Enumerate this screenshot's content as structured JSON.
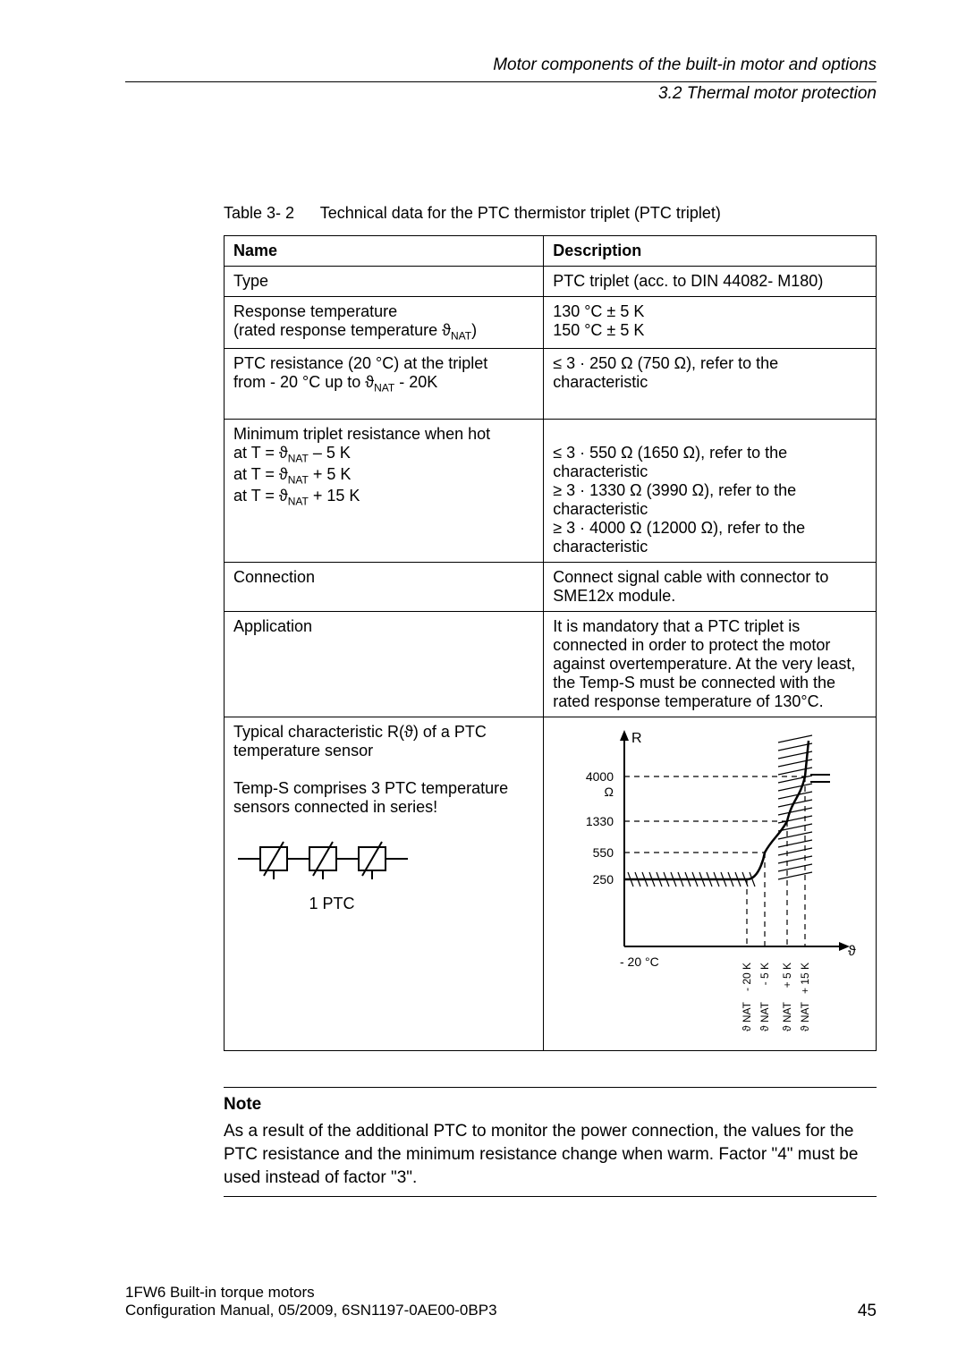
{
  "header": {
    "line1": "Motor components of the built-in motor and options",
    "line2": "3.2 Thermal motor protection"
  },
  "caption": {
    "label": "Table 3- 2",
    "text": "Technical data for the PTC thermistor triplet (PTC triplet)"
  },
  "table": {
    "head_name": "Name",
    "head_desc": "Description",
    "rows": {
      "type_name": "Type",
      "type_desc": "PTC triplet (acc. to DIN 44082- M180)",
      "resp_name_l1": "Response temperature",
      "resp_name_l2_pre": "(rated response temperature ϑ",
      "resp_name_l2_sub": "NAT",
      "resp_name_l2_post": ")",
      "resp_desc_l1": "130 °C ± 5 K",
      "resp_desc_l2": "150 °C ± 5 K",
      "ptc_res_name_l1": "PTC resistance (20 °C) at the triplet",
      "ptc_res_name_l2_pre": "from - 20 °C up to ϑ",
      "ptc_res_name_l2_sub": "NAT",
      "ptc_res_name_l2_post": " - 20K",
      "ptc_res_desc": "≤ 3 · 250 Ω (750 Ω), refer to the characteristic",
      "min_hot": "Minimum triplet resistance when hot",
      "at1_pre": " at T = ϑ",
      "at1_sub": "NAT",
      "at1_post": " – 5 K",
      "at1_desc": "≤ 3 · 550 Ω (1650 Ω), refer to the characteristic",
      "at2_pre": " at T = ϑ",
      "at2_sub": "NAT",
      "at2_post": " + 5 K",
      "at2_desc": "≥ 3 · 1330 Ω (3990 Ω), refer to the characteristic",
      "at3_pre": " at T = ϑ",
      "at3_sub": "NAT",
      "at3_post": " + 15 K",
      "at3_desc": "≥ 3 · 4000 Ω (12000 Ω), refer to the characteristic",
      "conn_name": "Connection",
      "conn_desc": "Connect signal cable with connector to SME12x module.",
      "app_name": "Application",
      "app_desc": "It is mandatory that a PTC triplet is connected in order to protect the motor against overtemperature. At the very least, the Temp-S must be connected with the rated response temperature of 130°C.",
      "char_l1": "Typical characteristic R(ϑ) of a PTC temperature sensor",
      "char_l2": "Temp-S comprises 3 PTC temperature sensors connected in series!",
      "char_l3": "1 PTC"
    }
  },
  "chart": {
    "type": "line",
    "y_label": "R",
    "y_unit": "Ω",
    "y_ticks": [
      250,
      550,
      1330,
      4000
    ],
    "x_left_label": "- 20 °C",
    "x_right_label": "ϑ",
    "x_tick_groups": [
      {
        "top": "- 20 K",
        "bottom": "ϑ NAT"
      },
      {
        "top": "- 5 K",
        "bottom": "ϑ NAT"
      },
      {
        "top": "+ 5 K",
        "bottom": "ϑ NAT"
      },
      {
        "top": "+ 15 K",
        "bottom": "ϑ NAT"
      }
    ],
    "colors": {
      "axis": "#000000",
      "solid_curve": "#000000",
      "tolerance_hatch": "#000000",
      "dashed": "#000000",
      "background": "#ffffff"
    },
    "line_width_axis": 2,
    "line_width_curve": 2.5,
    "dash_pattern": "6,5",
    "font_size_ticks": 14,
    "font_size_axis": 16
  },
  "note": {
    "title": "Note",
    "body": "As a result of the additional PTC to monitor the power connection, the values for the PTC resistance and the minimum resistance change when warm. Factor \"4\" must be used instead of factor \"3\"."
  },
  "footer": {
    "l1": "1FW6 Built-in torque motors",
    "l2": "Configuration Manual, 05/2009, 6SN1197-0AE00-0BP3",
    "page": "45"
  }
}
